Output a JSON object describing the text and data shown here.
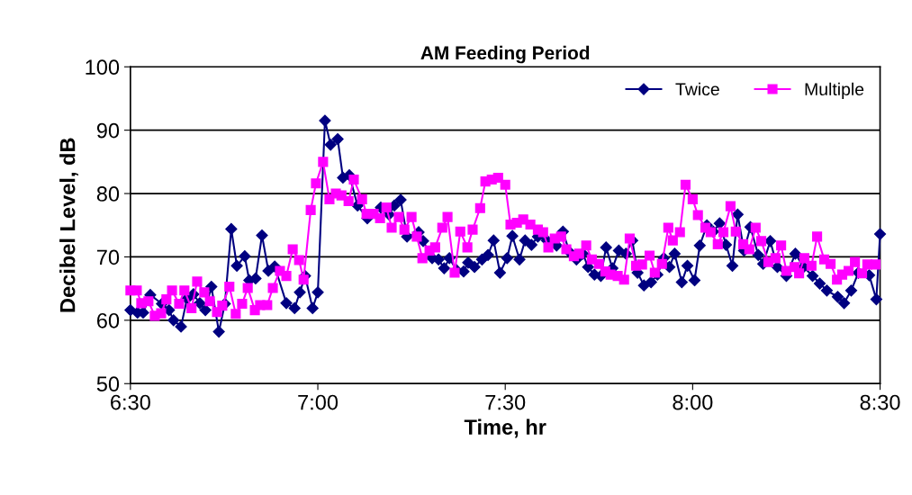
{
  "chart_data": {
    "type": "line",
    "title": "AM Feeding Period",
    "xlabel": "Time, hr",
    "ylabel": "Decibel Level, dB",
    "xlim": [
      6.5,
      8.5
    ],
    "xticks": [
      {
        "value": 6.5,
        "label": "6:30"
      },
      {
        "value": 7,
        "label": "7:00"
      },
      {
        "value": 7.5,
        "label": "7:30"
      },
      {
        "value": 8,
        "label": "8:00"
      },
      {
        "value": 8.5,
        "label": "8:30"
      }
    ],
    "ylim": [
      50,
      100
    ],
    "yticks": [
      50,
      60,
      70,
      80,
      90,
      100
    ],
    "grid": "y",
    "legend": "top right",
    "line_style": "solid",
    "series": [
      {
        "name": "Twice",
        "color": "#000080",
        "marker": "diamond",
        "x": [
          6.5,
          6.519,
          6.534,
          6.553,
          6.584,
          6.603,
          6.615,
          6.635,
          6.651,
          6.668,
          6.685,
          6.7,
          6.716,
          6.736,
          6.752,
          6.769,
          6.784,
          6.805,
          6.817,
          6.834,
          6.851,
          6.868,
          6.885,
          6.916,
          6.938,
          6.952,
          6.966,
          6.986,
          7.0,
          7.019,
          7.034,
          7.053,
          7.067,
          7.084,
          7.106,
          7.132,
          7.168,
          7.19,
          7.204,
          7.221,
          7.238,
          7.269,
          7.281,
          7.305,
          7.322,
          7.337,
          7.351,
          7.37,
          7.389,
          7.401,
          7.418,
          7.438,
          7.454,
          7.469,
          7.486,
          7.505,
          7.519,
          7.538,
          7.553,
          7.57,
          7.587,
          7.611,
          7.637,
          7.654,
          7.671,
          7.69,
          7.707,
          7.721,
          7.738,
          7.755,
          7.769,
          7.786,
          7.803,
          7.822,
          7.839,
          7.853,
          7.87,
          7.889,
          7.906,
          7.923,
          7.938,
          7.952,
          7.971,
          7.986,
          8.005,
          8.019,
          8.038,
          8.055,
          8.072,
          8.089,
          8.106,
          8.12,
          8.137,
          8.154,
          8.175,
          8.188,
          8.207,
          8.226,
          8.25,
          8.274,
          8.296,
          8.32,
          8.339,
          8.358,
          8.387,
          8.404,
          8.423,
          8.442,
          8.471,
          8.49,
          8.5
        ],
        "values": [
          61.6,
          61.2,
          61.2,
          64,
          62.6,
          61.6,
          60,
          59,
          63.4,
          64.1,
          62.7,
          61.6,
          65.3,
          58.2,
          62.6,
          74.4,
          68.6,
          70.1,
          66.3,
          66.6,
          73.4,
          67.8,
          68.5,
          62.7,
          61.9,
          64.4,
          67,
          61.9,
          64.4,
          91.5,
          87.7,
          88.6,
          82.5,
          82.9,
          78.1,
          76.1,
          77.8,
          76.7,
          78.1,
          79,
          73.2,
          73.9,
          72.5,
          69.8,
          69.6,
          68.2,
          69.8,
          67.9,
          67.7,
          69.1,
          68.4,
          69.6,
          70.3,
          72.6,
          67.5,
          69.8,
          73.3,
          69.6,
          72.6,
          71.9,
          73.2,
          72.6,
          71.8,
          74,
          70.8,
          69.6,
          70.5,
          68.4,
          67.2,
          67,
          71.5,
          68.2,
          71,
          70.5,
          72.6,
          67.5,
          65.5,
          66,
          67.2,
          69.8,
          68.4,
          70.5,
          66,
          68.6,
          66.3,
          71.8,
          75,
          74,
          75.3,
          71.9,
          68.6,
          76.7,
          71,
          74.7,
          70.3,
          68.9,
          72.5,
          68.4,
          67,
          70.5,
          68.4,
          67,
          65.8,
          64.7,
          63.7,
          62.7,
          64.7,
          67.5,
          67.1,
          63.3,
          73.6
        ]
      },
      {
        "name": "Multiple",
        "color": "#ff00ff",
        "marker": "square",
        "x": [
          6.5,
          6.517,
          6.529,
          6.548,
          6.565,
          6.582,
          6.596,
          6.611,
          6.63,
          6.644,
          6.663,
          6.678,
          6.697,
          6.712,
          6.731,
          6.745,
          6.764,
          6.781,
          6.798,
          6.813,
          6.832,
          6.846,
          6.865,
          6.88,
          6.899,
          6.916,
          6.933,
          6.95,
          6.962,
          6.981,
          6.995,
          7.014,
          7.031,
          7.048,
          7.063,
          7.082,
          7.096,
          7.118,
          7.13,
          7.149,
          7.166,
          7.183,
          7.197,
          7.216,
          7.231,
          7.25,
          7.264,
          7.279,
          7.298,
          7.313,
          7.332,
          7.346,
          7.365,
          7.38,
          7.399,
          7.413,
          7.433,
          7.447,
          7.464,
          7.481,
          7.5,
          7.514,
          7.531,
          7.548,
          7.567,
          7.587,
          7.601,
          7.615,
          7.632,
          7.649,
          7.663,
          7.683,
          7.697,
          7.716,
          7.731,
          7.75,
          7.767,
          7.781,
          7.8,
          7.817,
          7.832,
          7.849,
          7.865,
          7.885,
          7.899,
          7.918,
          7.935,
          7.947,
          7.966,
          7.981,
          8.0,
          8.014,
          8.034,
          8.048,
          8.067,
          8.082,
          8.101,
          8.115,
          8.135,
          8.151,
          8.168,
          8.183,
          8.202,
          8.221,
          8.236,
          8.25,
          8.272,
          8.284,
          8.298,
          8.317,
          8.332,
          8.351,
          8.368,
          8.385,
          8.399,
          8.416,
          8.433,
          8.452,
          8.466,
          8.488
        ],
        "values": [
          64.7,
          64.7,
          62.7,
          63,
          60.7,
          61.1,
          63.3,
          64.7,
          62.6,
          64.7,
          61.9,
          66.1,
          64.4,
          63,
          61.3,
          62.3,
          65.3,
          61,
          62.6,
          65.1,
          61.6,
          62.4,
          62.4,
          65.1,
          67.8,
          67,
          71.2,
          69.5,
          66.4,
          77.4,
          81.6,
          85,
          79.1,
          80,
          79.7,
          78.8,
          82.2,
          79.1,
          76.8,
          76.8,
          76.1,
          77.8,
          74.6,
          76.3,
          74.3,
          76.3,
          73.2,
          69.8,
          71,
          71.5,
          74.6,
          76.3,
          67.5,
          74,
          71.5,
          74.3,
          77.7,
          81.9,
          82.2,
          82.5,
          81.4,
          75.1,
          75.4,
          75.9,
          75.1,
          74.3,
          73.9,
          71.5,
          72.9,
          73.2,
          71.2,
          70.1,
          70.5,
          71.8,
          69.6,
          68.9,
          67.7,
          67.2,
          67,
          66.4,
          72.9,
          68.6,
          68.8,
          70.2,
          67.5,
          68.9,
          74.6,
          72.6,
          73.9,
          81.4,
          79.1,
          76.6,
          74.6,
          73.9,
          72,
          73.9,
          78,
          74,
          72,
          71.2,
          74.6,
          72.5,
          69.2,
          69.8,
          71.8,
          67.8,
          68.4,
          67.4,
          69.8,
          68.6,
          73.2,
          69.6,
          68.9,
          66.4,
          67.2,
          67.8,
          69.2,
          67.4,
          68.8,
          68.8
        ]
      }
    ]
  }
}
